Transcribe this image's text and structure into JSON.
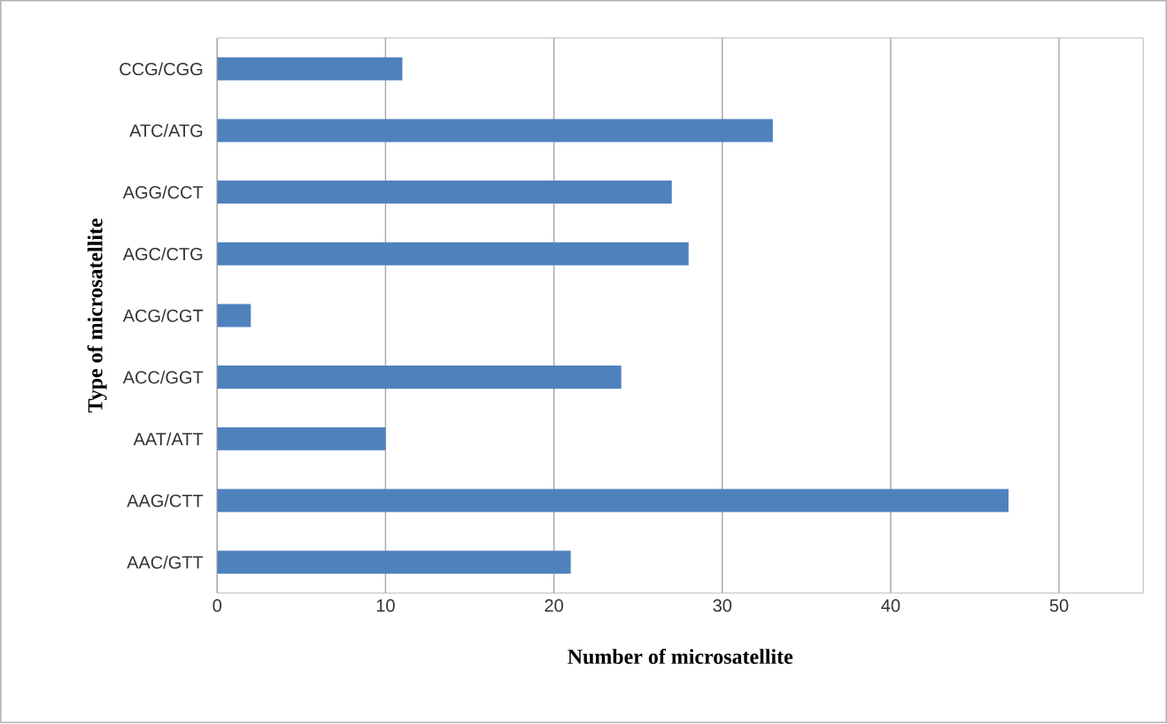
{
  "chart_data": {
    "type": "bar",
    "orientation": "horizontal",
    "xlabel": "Number of microsatellite",
    "ylabel": "Type of microsatellite",
    "categories": [
      "CCG/CGG",
      "ATC/ATG",
      "AGG/CCT",
      "AGC/CTG",
      "ACG/CGT",
      "ACC/GGT",
      "AAT/ATT",
      "AAG/CTT",
      "AAC/GTT"
    ],
    "values": [
      11,
      33,
      27,
      28,
      2,
      24,
      10,
      47,
      21
    ],
    "color": "#4f81bd",
    "xlim": [
      0,
      55
    ],
    "xticks": [
      0,
      10,
      20,
      30,
      40,
      50
    ],
    "grid": "x"
  }
}
